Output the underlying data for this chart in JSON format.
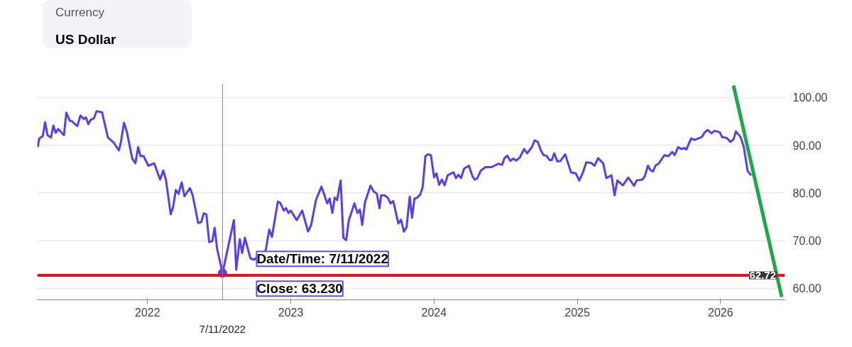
{
  "chart_data": {
    "type": "line",
    "xlim": [
      "2021-03-26",
      "2026-06-14"
    ],
    "ylim": [
      57.6,
      102.8
    ],
    "xticks": [
      "2022",
      "2023",
      "2024",
      "2025",
      "2026"
    ],
    "yticks": [
      {
        "value": 60,
        "label": "60.00"
      },
      {
        "value": 70,
        "label": "70.00"
      },
      {
        "value": 80,
        "label": "80.00"
      },
      {
        "value": 90,
        "label": "90.00"
      },
      {
        "value": 100,
        "label": "100.00"
      }
    ],
    "grid": "y",
    "series": [
      {
        "color": "#5b3cf5",
        "x": [
          "2021-03-27",
          "2021-03-31",
          "2021-04-09",
          "2021-04-15",
          "2021-04-21",
          "2021-04-30",
          "2021-05-06",
          "2021-05-12",
          "2021-05-18",
          "2021-06-02",
          "2021-06-08",
          "2021-06-17",
          "2021-06-23",
          "2021-06-30",
          "2021-07-06",
          "2021-07-14",
          "2021-07-22",
          "2021-07-28",
          "2021-08-03",
          "2021-08-09",
          "2021-08-17",
          "2021-08-24",
          "2021-09-07",
          "2021-09-22",
          "2021-10-07",
          "2021-10-20",
          "2021-10-25",
          "2021-11-02",
          "2021-11-09",
          "2021-11-23",
          "2021-12-01",
          "2021-12-08",
          "2021-12-14",
          "2021-12-22",
          "2022-01-03",
          "2022-01-18",
          "2022-02-02",
          "2022-02-10",
          "2022-02-17",
          "2022-03-01",
          "2022-03-07",
          "2022-03-14",
          "2022-03-21",
          "2022-03-29",
          "2022-04-05",
          "2022-04-19",
          "2022-04-26",
          "2022-05-10",
          "2022-05-18",
          "2022-05-24",
          "2022-05-31",
          "2022-06-07",
          "2022-06-15",
          "2022-06-21",
          "2022-06-27",
          "2022-07-11",
          "2022-07-22",
          "2022-08-09",
          "2022-08-15",
          "2022-08-24",
          "2022-08-30",
          "2022-09-06",
          "2022-09-20",
          "2022-09-29",
          "2022-10-29",
          "2022-11-07",
          "2022-11-14",
          "2022-11-29",
          "2022-12-05",
          "2022-12-14",
          "2022-12-20",
          "2022-12-26",
          "2023-01-01",
          "2023-01-16",
          "2023-01-30",
          "2023-02-14",
          "2023-02-22",
          "2023-03-06",
          "2023-03-20",
          "2023-04-04",
          "2023-04-10",
          "2023-04-17",
          "2023-04-23",
          "2023-04-29",
          "2023-05-08",
          "2023-05-15",
          "2023-05-22",
          "2023-05-29",
          "2023-06-12",
          "2023-06-20",
          "2023-06-26",
          "2023-07-02",
          "2023-07-09",
          "2023-07-23",
          "2023-08-01",
          "2023-08-08",
          "2023-08-15",
          "2023-08-19",
          "2023-08-28",
          "2023-09-05",
          "2023-09-12",
          "2023-09-19",
          "2023-09-26",
          "2023-10-02",
          "2023-10-09",
          "2023-10-16",
          "2023-10-23",
          "2023-10-31",
          "2023-11-06",
          "2023-11-12",
          "2023-11-19",
          "2023-11-27",
          "2023-12-03",
          "2023-12-10",
          "2023-12-17",
          "2023-12-24",
          "2024-01-01",
          "2024-01-07",
          "2024-01-14",
          "2024-01-21",
          "2024-01-28",
          "2024-02-05",
          "2024-02-20",
          "2024-02-26",
          "2024-03-03",
          "2024-03-10",
          "2024-03-18",
          "2024-03-30",
          "2024-04-08",
          "2024-04-14",
          "2024-04-20",
          "2024-04-29",
          "2024-05-11",
          "2024-05-27",
          "2024-06-13",
          "2024-06-23",
          "2024-06-29",
          "2024-07-06",
          "2024-07-14",
          "2024-07-21",
          "2024-07-29",
          "2024-08-07",
          "2024-08-18",
          "2024-08-26",
          "2024-09-07",
          "2024-09-14",
          "2024-09-22",
          "2024-10-01",
          "2024-10-07",
          "2024-10-14",
          "2024-10-22",
          "2024-10-28",
          "2024-11-03",
          "2024-11-11",
          "2024-11-19",
          "2024-12-01",
          "2024-12-16",
          "2024-12-28",
          "2025-01-06",
          "2025-01-15",
          "2025-01-24",
          "2025-02-05",
          "2025-02-14",
          "2025-02-23",
          "2025-03-08",
          "2025-03-16",
          "2025-03-29",
          "2025-04-06",
          "2025-04-13",
          "2025-04-27",
          "2025-05-11",
          "2025-05-26",
          "2025-06-01",
          "2025-06-16",
          "2025-06-22",
          "2025-06-30",
          "2025-07-07",
          "2025-07-13",
          "2025-07-19",
          "2025-07-28",
          "2025-08-11",
          "2025-08-21",
          "2025-08-31",
          "2025-09-06",
          "2025-09-15",
          "2025-09-23",
          "2025-09-30",
          "2025-10-06",
          "2025-10-18",
          "2025-10-27",
          "2025-11-14",
          "2025-11-22",
          "2025-11-29",
          "2025-12-09",
          "2025-12-17",
          "2025-12-30",
          "2026-01-05",
          "2026-01-17",
          "2026-01-26",
          "2026-02-03",
          "2026-02-09",
          "2026-02-21",
          "2026-03-01",
          "2026-03-11",
          "2026-03-20"
        ],
        "values": [
          89.6,
          91.4,
          91.9,
          94.8,
          92.1,
          91.6,
          94.1,
          92.6,
          93.4,
          92.1,
          96.8,
          95.1,
          95.0,
          94.4,
          94.0,
          96.2,
          95.5,
          95.8,
          94.4,
          95.3,
          95.6,
          97.1,
          96.9,
          91.6,
          90.5,
          88.9,
          90.6,
          94.7,
          92.9,
          87.2,
          86.2,
          89.6,
          87.7,
          87.7,
          85.7,
          86.2,
          82.8,
          84.7,
          82.7,
          75.5,
          77.0,
          80.6,
          79.8,
          82.2,
          79.3,
          81.0,
          79.5,
          73.7,
          73.9,
          75.7,
          75.5,
          69.7,
          69.9,
          72.7,
          68.4,
          63.2,
          67.4,
          74.3,
          63.9,
          70.3,
          67.4,
          70.6,
          66.3,
          66.0,
          67.9,
          72.3,
          70.8,
          78.2,
          77.9,
          76.3,
          76.8,
          75.8,
          76.3,
          74.3,
          76.3,
          71.9,
          73.3,
          78.5,
          81.3,
          77.8,
          78.8,
          75.8,
          79.0,
          78.5,
          82.6,
          70.6,
          70.1,
          74.3,
          77.8,
          75.8,
          76.5,
          73.3,
          78.0,
          81.5,
          80.2,
          79.9,
          76.8,
          79.5,
          79.5,
          79.0,
          77.8,
          78.3,
          75.8,
          73.6,
          74.4,
          71.9,
          72.8,
          79.2,
          74.8,
          78.8,
          79.0,
          79.7,
          81.2,
          87.7,
          88.1,
          87.9,
          83.3,
          84.1,
          81.7,
          82.8,
          81.6,
          83.7,
          84.3,
          83.1,
          83.8,
          83.1,
          85.1,
          85.7,
          83.5,
          82.8,
          83.0,
          84.6,
          85.4,
          85.4,
          86.1,
          85.9,
          87.3,
          87.8,
          86.7,
          87.2,
          86.8,
          87.4,
          89.2,
          88.3,
          89.6,
          91.0,
          90.7,
          88.7,
          87.9,
          87.8,
          86.9,
          86.9,
          88.3,
          86.6,
          86.7,
          88.1,
          84.3,
          84.1,
          82.6,
          84.2,
          86.4,
          86.3,
          85.7,
          87.3,
          86.2,
          83.1,
          83.7,
          79.5,
          82.6,
          81.6,
          83.2,
          81.5,
          82.6,
          82.8,
          83.5,
          85.7,
          84.7,
          84.5,
          85.7,
          86.2,
          87.9,
          87.7,
          88.6,
          87.9,
          89.6,
          89.2,
          89.4,
          89.1,
          91.4,
          91.1,
          91.7,
          92.7,
          93.2,
          92.5,
          93.0,
          92.7,
          91.7,
          91.5,
          90.7,
          91.2,
          92.9,
          91.7,
          89.7,
          84.6,
          83.7
        ]
      },
      {
        "type": "line",
        "color": "#1fa84a",
        "x": [
          "2026-02-03",
          "2026-06-06"
        ],
        "values": [
          102.5,
          58.2
        ]
      }
    ],
    "ref_lines": [
      {
        "axis": "y",
        "value": 62.72,
        "label": "62.72",
        "color": "#e8141b"
      },
      {
        "axis": "x",
        "value": "2022-07-11",
        "label": "7/11/2022",
        "color": "#888888"
      }
    ],
    "annotations": [
      "Currency",
      "US Dollar",
      {
        "text": "Date/Time: 7/11/2022",
        "x": "2022-07-11",
        "y": 63.2
      },
      {
        "text": "Close: 63.230",
        "x": "2022-07-11",
        "y": 63.2
      }
    ]
  }
}
